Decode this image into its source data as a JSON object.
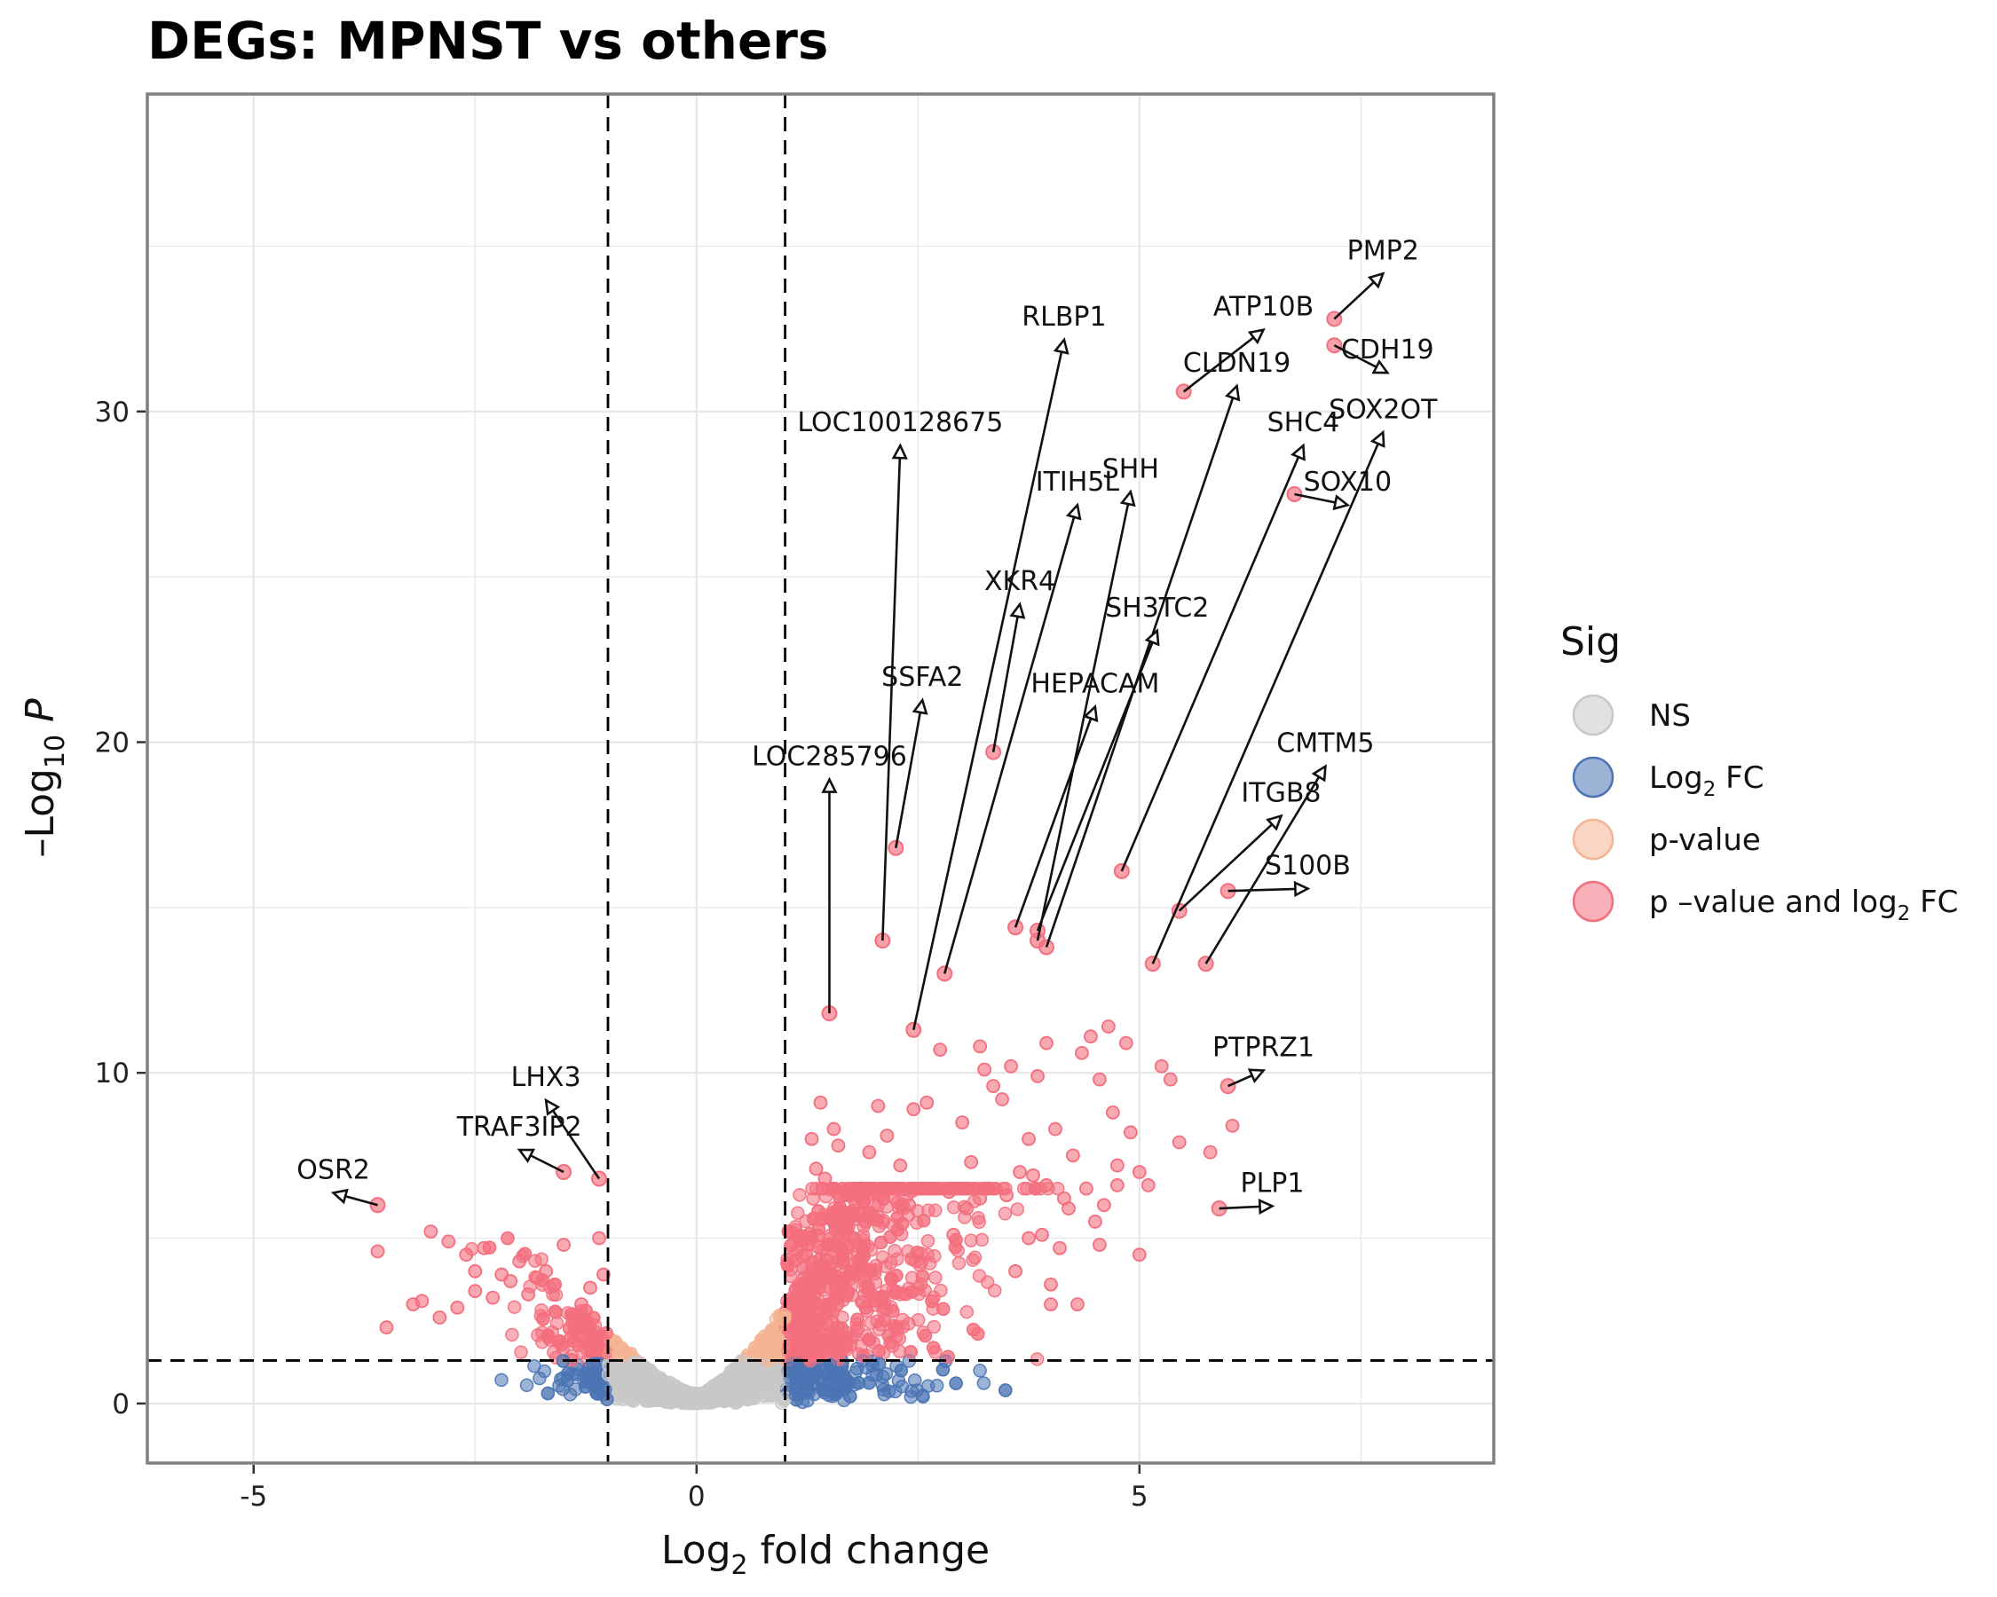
{
  "chart_data": {
    "type": "scatter",
    "title": "DEGs: MPNST vs others",
    "xlabel_main": "Log",
    "xlabel_sub": "2",
    "xlabel_tail": " fold change",
    "ylabel_main": "–Log",
    "ylabel_sub": "10",
    "ylabel_tail": " P",
    "xlim": [
      -6.2,
      9.0
    ],
    "ylim": [
      -1.8,
      39.6
    ],
    "x_ticks": [
      {
        "value": -5,
        "label": "-5"
      },
      {
        "value": 0,
        "label": "0"
      },
      {
        "value": 5,
        "label": "5"
      }
    ],
    "y_ticks": [
      {
        "value": 0,
        "label": "0"
      },
      {
        "value": 10,
        "label": "10"
      },
      {
        "value": 20,
        "label": "20"
      },
      {
        "value": 30,
        "label": "30"
      }
    ],
    "grid": true,
    "thresholds": {
      "log2fc": 1.0,
      "neg_log10_p": 1.3
    },
    "colors": {
      "NS": "#c8c8c8",
      "Log2FC": "#4a74b4",
      "pvalue": "#f4b493",
      "both": "#f46f7e",
      "threshold_line": "#000000",
      "panel_border": "#808080",
      "grid": "#e6e6e6"
    },
    "legend": {
      "position": "right",
      "title": "Sig",
      "entries": [
        {
          "key": "NS",
          "label_main": "NS",
          "label_sub": "",
          "label_tail": "",
          "color": "#c8c8c8"
        },
        {
          "key": "Log2FC",
          "label_main": "Log",
          "label_sub": "2",
          "label_tail": " FC",
          "color": "#4a74b4"
        },
        {
          "key": "pvalue",
          "label_main": "p-value",
          "label_sub": "",
          "label_tail": "",
          "color": "#f4b493"
        },
        {
          "key": "both",
          "label_main": "p –value and log",
          "label_sub": "2",
          "label_tail": " FC",
          "color": "#f46f7e"
        }
      ]
    },
    "labeled_genes": [
      {
        "gene": "PMP2",
        "x": 7.2,
        "y": 32.8,
        "label_x": 7.75,
        "label_y": 34.6
      },
      {
        "gene": "CDH19",
        "x": 7.2,
        "y": 32.0,
        "label_x": 7.8,
        "label_y": 31.6
      },
      {
        "gene": "ATP10B",
        "x": 5.5,
        "y": 30.6,
        "label_x": 6.4,
        "label_y": 32.9
      },
      {
        "gene": "RLBP1",
        "x": 2.45,
        "y": 11.3,
        "label_x": 4.15,
        "label_y": 32.6
      },
      {
        "gene": "CLDN19",
        "x": 3.95,
        "y": 13.8,
        "label_x": 6.1,
        "label_y": 31.2
      },
      {
        "gene": "SOX2OT",
        "x": 5.15,
        "y": 13.3,
        "label_x": 7.75,
        "label_y": 29.8
      },
      {
        "gene": "SHC4",
        "x": 4.8,
        "y": 16.1,
        "label_x": 6.85,
        "label_y": 29.4
      },
      {
        "gene": "LOC100128675",
        "x": 2.1,
        "y": 14.0,
        "label_x": 2.3,
        "label_y": 29.4
      },
      {
        "gene": "SHH",
        "x": 3.85,
        "y": 14.0,
        "label_x": 4.9,
        "label_y": 28.0
      },
      {
        "gene": "ITIH5L",
        "x": 2.8,
        "y": 13.0,
        "label_x": 4.3,
        "label_y": 27.6
      },
      {
        "gene": "SOX10",
        "x": 6.75,
        "y": 27.5,
        "label_x": 7.35,
        "label_y": 27.6
      },
      {
        "gene": "XKR4",
        "x": 3.35,
        "y": 19.7,
        "label_x": 3.65,
        "label_y": 24.6
      },
      {
        "gene": "SH3TC2",
        "x": 3.85,
        "y": 14.3,
        "label_x": 5.2,
        "label_y": 23.8
      },
      {
        "gene": "SSFA2",
        "x": 2.25,
        "y": 16.8,
        "label_x": 2.55,
        "label_y": 21.7
      },
      {
        "gene": "HEPACAM",
        "x": 3.6,
        "y": 14.4,
        "label_x": 4.5,
        "label_y": 21.5
      },
      {
        "gene": "LOC285796",
        "x": 1.5,
        "y": 11.8,
        "label_x": 1.5,
        "label_y": 19.3
      },
      {
        "gene": "CMTM5",
        "x": 5.75,
        "y": 13.3,
        "label_x": 7.1,
        "label_y": 19.7
      },
      {
        "gene": "ITGB8",
        "x": 5.45,
        "y": 14.9,
        "label_x": 6.6,
        "label_y": 18.2
      },
      {
        "gene": "S100B",
        "x": 6.0,
        "y": 15.5,
        "label_x": 6.9,
        "label_y": 16.0
      },
      {
        "gene": "PTPRZ1",
        "x": 6.0,
        "y": 9.6,
        "label_x": 6.4,
        "label_y": 10.5
      },
      {
        "gene": "PLP1",
        "x": 5.9,
        "y": 5.9,
        "label_x": 6.5,
        "label_y": 6.4
      },
      {
        "gene": "LHX3",
        "x": -1.1,
        "y": 6.8,
        "label_x": -1.7,
        "label_y": 9.6
      },
      {
        "gene": "TRAF3IP2",
        "x": -1.5,
        "y": 7.0,
        "label_x": -2.0,
        "label_y": 8.1
      },
      {
        "gene": "OSR2",
        "x": -3.6,
        "y": 6.0,
        "label_x": -4.1,
        "label_y": 6.8
      }
    ],
    "strong_points": [
      [
        1.3,
        8.0
      ],
      [
        1.4,
        9.1
      ],
      [
        1.55,
        8.3
      ],
      [
        1.35,
        7.1
      ],
      [
        1.6,
        7.8
      ],
      [
        1.45,
        6.8
      ],
      [
        1.85,
        6.5
      ],
      [
        1.95,
        7.6
      ],
      [
        2.05,
        9.0
      ],
      [
        2.15,
        8.1
      ],
      [
        2.3,
        7.2
      ],
      [
        2.45,
        8.9
      ],
      [
        2.6,
        9.1
      ],
      [
        2.75,
        10.7
      ],
      [
        2.55,
        6.5
      ],
      [
        2.85,
        6.4
      ],
      [
        3.0,
        8.5
      ],
      [
        3.1,
        7.3
      ],
      [
        3.2,
        10.8
      ],
      [
        3.25,
        10.1
      ],
      [
        3.35,
        9.6
      ],
      [
        3.45,
        9.2
      ],
      [
        3.55,
        10.2
      ],
      [
        3.65,
        7.0
      ],
      [
        3.75,
        8.0
      ],
      [
        3.3,
        6.5
      ],
      [
        3.5,
        6.3
      ],
      [
        3.85,
        9.9
      ],
      [
        3.95,
        10.9
      ],
      [
        4.05,
        8.3
      ],
      [
        4.15,
        6.2
      ],
      [
        4.25,
        7.5
      ],
      [
        4.35,
        10.6
      ],
      [
        4.45,
        11.1
      ],
      [
        4.55,
        9.8
      ],
      [
        4.65,
        11.4
      ],
      [
        4.75,
        7.2
      ],
      [
        4.85,
        10.9
      ],
      [
        5.0,
        7.0
      ],
      [
        5.1,
        6.6
      ],
      [
        5.25,
        10.2
      ],
      [
        5.35,
        9.8
      ],
      [
        5.45,
        7.9
      ],
      [
        5.8,
        7.6
      ],
      [
        6.05,
        8.4
      ],
      [
        5.0,
        4.5
      ],
      [
        4.5,
        5.5
      ],
      [
        4.2,
        5.9
      ],
      [
        3.9,
        5.1
      ],
      [
        4.4,
        6.5
      ],
      [
        4.6,
        6.0
      ],
      [
        4.75,
        6.6
      ],
      [
        4.3,
        3.0
      ],
      [
        4.0,
        3.6
      ],
      [
        3.6,
        4.0
      ],
      [
        3.95,
        6.6
      ],
      [
        3.8,
        6.9
      ],
      [
        3.05,
        5.9
      ],
      [
        3.2,
        6.2
      ],
      [
        2.9,
        5.1
      ],
      [
        4.1,
        4.7
      ],
      [
        4.0,
        3.0
      ],
      [
        3.75,
        5.0
      ],
      [
        4.55,
        4.8
      ],
      [
        4.9,
        8.2
      ],
      [
        4.7,
        8.8
      ],
      [
        1.7,
        6.3
      ],
      [
        1.9,
        5.5
      ],
      [
        2.4,
        6.0
      ],
      [
        1.5,
        5.6
      ],
      [
        1.3,
        5.0
      ],
      [
        1.65,
        5.8
      ],
      [
        -1.1,
        5.0
      ],
      [
        -1.2,
        3.5
      ],
      [
        -1.3,
        3.0
      ],
      [
        -1.5,
        4.8
      ],
      [
        -1.7,
        4.0
      ],
      [
        -1.9,
        3.3
      ],
      [
        -2.1,
        3.7
      ],
      [
        -2.3,
        3.2
      ],
      [
        -2.5,
        4.0
      ],
      [
        -2.7,
        2.9
      ],
      [
        -2.9,
        2.6
      ],
      [
        -3.1,
        3.1
      ],
      [
        -3.5,
        2.3
      ],
      [
        -3.6,
        4.6
      ],
      [
        -2.4,
        4.7
      ],
      [
        -2.6,
        4.5
      ],
      [
        -2.8,
        4.9
      ],
      [
        -3.0,
        5.2
      ],
      [
        -1.6,
        3.6
      ],
      [
        -1.8,
        3.8
      ],
      [
        -2.0,
        4.3
      ],
      [
        -2.2,
        3.9
      ],
      [
        -1.4,
        2.7
      ],
      [
        -1.05,
        3.9
      ],
      [
        -1.25,
        2.4
      ],
      [
        -3.2,
        3.0
      ],
      [
        -2.5,
        3.4
      ]
    ]
  }
}
